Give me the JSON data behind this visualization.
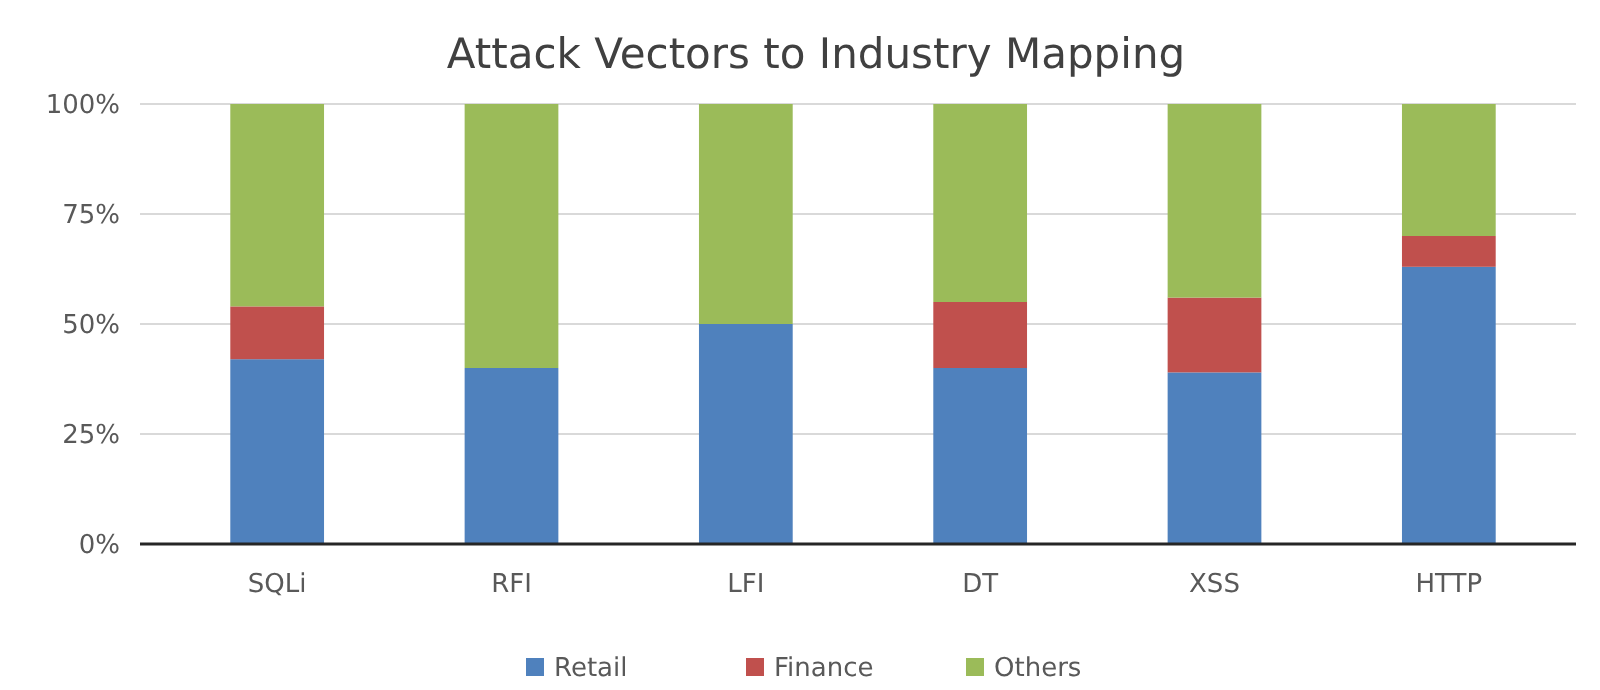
{
  "chart_data": {
    "type": "bar",
    "title": "Attack Vectors to Industry Mapping",
    "stacked": true,
    "categories": [
      "SQLi",
      "RFI",
      "LFI",
      "DT",
      "XSS",
      "HTTP"
    ],
    "series": [
      {
        "name": "Retail",
        "color": "#4f81bd",
        "values": [
          42,
          40,
          50,
          40,
          39,
          63
        ]
      },
      {
        "name": "Finance",
        "color": "#c0504d",
        "values": [
          12,
          0,
          0,
          15,
          17,
          7
        ]
      },
      {
        "name": "Others",
        "color": "#9bbb59",
        "values": [
          46,
          60,
          50,
          45,
          44,
          30
        ]
      }
    ],
    "ylim": [
      0,
      100
    ],
    "yticks": [
      {
        "value": 0,
        "label": "0%"
      },
      {
        "value": 25,
        "label": "25%"
      },
      {
        "value": 50,
        "label": "50%"
      },
      {
        "value": 75,
        "label": "75%"
      },
      {
        "value": 100,
        "label": "100%"
      }
    ],
    "grid": "y",
    "legend": "bottom"
  }
}
